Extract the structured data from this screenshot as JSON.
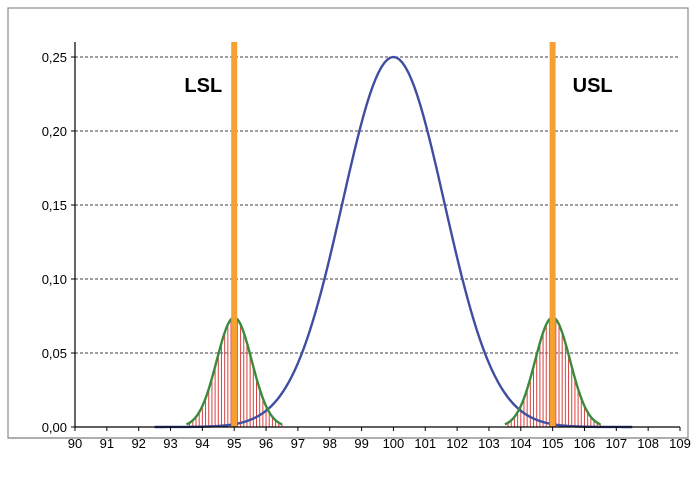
{
  "chart_data": {
    "type": "line",
    "title": "",
    "xlabel": "",
    "ylabel": "",
    "xlim": [
      90,
      109
    ],
    "ylim": [
      0,
      0.25
    ],
    "grid": true,
    "legend": "none",
    "x_ticks": [
      "90",
      "91",
      "92",
      "93",
      "94",
      "95",
      "96",
      "97",
      "98",
      "99",
      "100",
      "101",
      "102",
      "103",
      "104",
      "105",
      "106",
      "107",
      "108",
      "109"
    ],
    "y_ticks": [
      "0,00",
      "0,05",
      "0,10",
      "0,15",
      "0,20",
      "0,25"
    ],
    "series": [
      {
        "mean": 100,
        "sd": 1.6,
        "peak": 0.25,
        "range": [
          92.5,
          107.5
        ],
        "color": "#3f4ea0"
      },
      {
        "mean": 95,
        "sd": 0.55,
        "peak": 0.074,
        "range": [
          93.5,
          96.5
        ],
        "color": "#3a8a3a",
        "fill": "#d94040"
      },
      {
        "mean": 105,
        "sd": 0.55,
        "peak": 0.074,
        "range": [
          103.5,
          106.5
        ],
        "color": "#3a8a3a",
        "fill": "#d94040"
      }
    ],
    "annotations": [
      {
        "label": "LSL",
        "x": 95,
        "color": "#f5a030"
      },
      {
        "label": "USL",
        "x": 105,
        "color": "#f5a030"
      }
    ]
  }
}
